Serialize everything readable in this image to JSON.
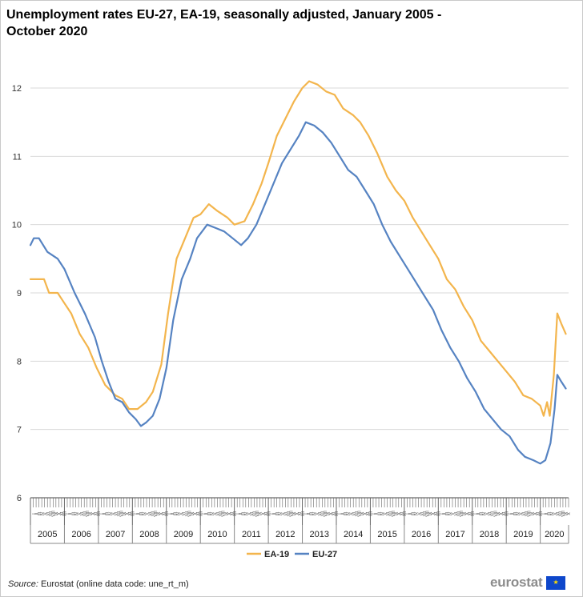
{
  "title": "Unemployment rates EU-27, EA-19, seasonally adjusted, January 2005 - October 2020",
  "source": {
    "label": "Source:",
    "text": " Eurostat (online data code: une_rt_m)"
  },
  "brand": {
    "name": "eurostat",
    "flag_icon": "eu-flag-icon",
    "flag_stars": "★"
  },
  "colors": {
    "ea19": "#f3b54d",
    "eu27": "#5683c2",
    "grid": "#d9d9d9",
    "axis": "#444444"
  },
  "chart_data": {
    "type": "line",
    "title": "Unemployment rates EU-27, EA-19, seasonally adjusted, January 2005 - October 2020",
    "xlabel": "",
    "ylabel": "",
    "ylim": [
      6,
      12
    ],
    "yticks": [
      "6",
      "7",
      "8",
      "9",
      "10",
      "11",
      "12"
    ],
    "grid": true,
    "legend_position": "bottom-center",
    "years": [
      "2005",
      "2006",
      "2007",
      "2008",
      "2009",
      "2010",
      "2011",
      "2012",
      "2013",
      "2014",
      "2015",
      "2016",
      "2017",
      "2018",
      "2019",
      "2020"
    ],
    "month_ticks": [
      "I",
      "II",
      "III",
      "IV",
      "V",
      "VI",
      "VII",
      "VIII",
      "IX",
      "X",
      "XI",
      "XII"
    ],
    "x_start": "2005-01",
    "x_end": "2020-10",
    "series": [
      {
        "name": "EA-19",
        "color": "#f3b54d",
        "points": [
          [
            2005.0,
            9.2
          ],
          [
            2005.4,
            9.2
          ],
          [
            2005.55,
            9.0
          ],
          [
            2005.8,
            9.0
          ],
          [
            2006.0,
            8.85
          ],
          [
            2006.2,
            8.7
          ],
          [
            2006.45,
            8.4
          ],
          [
            2006.7,
            8.2
          ],
          [
            2006.95,
            7.9
          ],
          [
            2007.2,
            7.65
          ],
          [
            2007.5,
            7.5
          ],
          [
            2007.7,
            7.45
          ],
          [
            2007.9,
            7.3
          ],
          [
            2008.15,
            7.3
          ],
          [
            2008.4,
            7.4
          ],
          [
            2008.6,
            7.55
          ],
          [
            2008.85,
            7.95
          ],
          [
            2009.05,
            8.7
          ],
          [
            2009.3,
            9.5
          ],
          [
            2009.55,
            9.8
          ],
          [
            2009.8,
            10.1
          ],
          [
            2010.0,
            10.15
          ],
          [
            2010.25,
            10.3
          ],
          [
            2010.5,
            10.2
          ],
          [
            2010.8,
            10.1
          ],
          [
            2011.0,
            10.0
          ],
          [
            2011.3,
            10.05
          ],
          [
            2011.55,
            10.3
          ],
          [
            2011.8,
            10.6
          ],
          [
            2012.0,
            10.9
          ],
          [
            2012.25,
            11.3
          ],
          [
            2012.5,
            11.55
          ],
          [
            2012.75,
            11.8
          ],
          [
            2013.0,
            12.0
          ],
          [
            2013.2,
            12.1
          ],
          [
            2013.45,
            12.05
          ],
          [
            2013.7,
            11.95
          ],
          [
            2013.95,
            11.9
          ],
          [
            2014.2,
            11.7
          ],
          [
            2014.5,
            11.6
          ],
          [
            2014.7,
            11.5
          ],
          [
            2014.95,
            11.3
          ],
          [
            2015.2,
            11.05
          ],
          [
            2015.5,
            10.7
          ],
          [
            2015.75,
            10.5
          ],
          [
            2016.0,
            10.35
          ],
          [
            2016.25,
            10.1
          ],
          [
            2016.5,
            9.9
          ],
          [
            2016.75,
            9.7
          ],
          [
            2017.0,
            9.5
          ],
          [
            2017.25,
            9.2
          ],
          [
            2017.5,
            9.05
          ],
          [
            2017.75,
            8.8
          ],
          [
            2018.0,
            8.6
          ],
          [
            2018.25,
            8.3
          ],
          [
            2018.5,
            8.15
          ],
          [
            2018.75,
            8.0
          ],
          [
            2019.0,
            7.85
          ],
          [
            2019.25,
            7.7
          ],
          [
            2019.5,
            7.5
          ],
          [
            2019.75,
            7.45
          ],
          [
            2020.0,
            7.35
          ],
          [
            2020.1,
            7.2
          ],
          [
            2020.2,
            7.4
          ],
          [
            2020.28,
            7.2
          ],
          [
            2020.4,
            7.8
          ],
          [
            2020.5,
            8.7
          ],
          [
            2020.62,
            8.55
          ],
          [
            2020.75,
            8.4
          ]
        ]
      },
      {
        "name": "EU-27",
        "color": "#5683c2",
        "points": [
          [
            2005.0,
            9.7
          ],
          [
            2005.1,
            9.8
          ],
          [
            2005.25,
            9.8
          ],
          [
            2005.5,
            9.6
          ],
          [
            2005.8,
            9.5
          ],
          [
            2006.0,
            9.35
          ],
          [
            2006.3,
            9.0
          ],
          [
            2006.6,
            8.7
          ],
          [
            2006.9,
            8.35
          ],
          [
            2007.1,
            8.0
          ],
          [
            2007.3,
            7.7
          ],
          [
            2007.5,
            7.45
          ],
          [
            2007.7,
            7.4
          ],
          [
            2007.9,
            7.25
          ],
          [
            2008.1,
            7.15
          ],
          [
            2008.25,
            7.05
          ],
          [
            2008.4,
            7.1
          ],
          [
            2008.6,
            7.2
          ],
          [
            2008.8,
            7.45
          ],
          [
            2009.0,
            7.9
          ],
          [
            2009.2,
            8.6
          ],
          [
            2009.45,
            9.2
          ],
          [
            2009.7,
            9.5
          ],
          [
            2009.9,
            9.8
          ],
          [
            2010.2,
            10.0
          ],
          [
            2010.45,
            9.95
          ],
          [
            2010.7,
            9.9
          ],
          [
            2010.95,
            9.8
          ],
          [
            2011.2,
            9.7
          ],
          [
            2011.4,
            9.8
          ],
          [
            2011.65,
            10.0
          ],
          [
            2011.9,
            10.3
          ],
          [
            2012.15,
            10.6
          ],
          [
            2012.4,
            10.9
          ],
          [
            2012.65,
            11.1
          ],
          [
            2012.9,
            11.3
          ],
          [
            2013.1,
            11.5
          ],
          [
            2013.35,
            11.45
          ],
          [
            2013.6,
            11.35
          ],
          [
            2013.85,
            11.2
          ],
          [
            2014.1,
            11.0
          ],
          [
            2014.35,
            10.8
          ],
          [
            2014.6,
            10.7
          ],
          [
            2014.85,
            10.5
          ],
          [
            2015.1,
            10.3
          ],
          [
            2015.35,
            10.0
          ],
          [
            2015.6,
            9.75
          ],
          [
            2015.85,
            9.55
          ],
          [
            2016.1,
            9.35
          ],
          [
            2016.35,
            9.15
          ],
          [
            2016.6,
            8.95
          ],
          [
            2016.85,
            8.75
          ],
          [
            2017.1,
            8.45
          ],
          [
            2017.35,
            8.2
          ],
          [
            2017.6,
            8.0
          ],
          [
            2017.85,
            7.75
          ],
          [
            2018.1,
            7.55
          ],
          [
            2018.35,
            7.3
          ],
          [
            2018.6,
            7.15
          ],
          [
            2018.85,
            7.0
          ],
          [
            2019.1,
            6.9
          ],
          [
            2019.35,
            6.7
          ],
          [
            2019.55,
            6.6
          ],
          [
            2019.8,
            6.55
          ],
          [
            2020.0,
            6.5
          ],
          [
            2020.15,
            6.55
          ],
          [
            2020.3,
            6.8
          ],
          [
            2020.42,
            7.3
          ],
          [
            2020.5,
            7.8
          ],
          [
            2020.62,
            7.7
          ],
          [
            2020.75,
            7.6
          ]
        ]
      }
    ]
  }
}
